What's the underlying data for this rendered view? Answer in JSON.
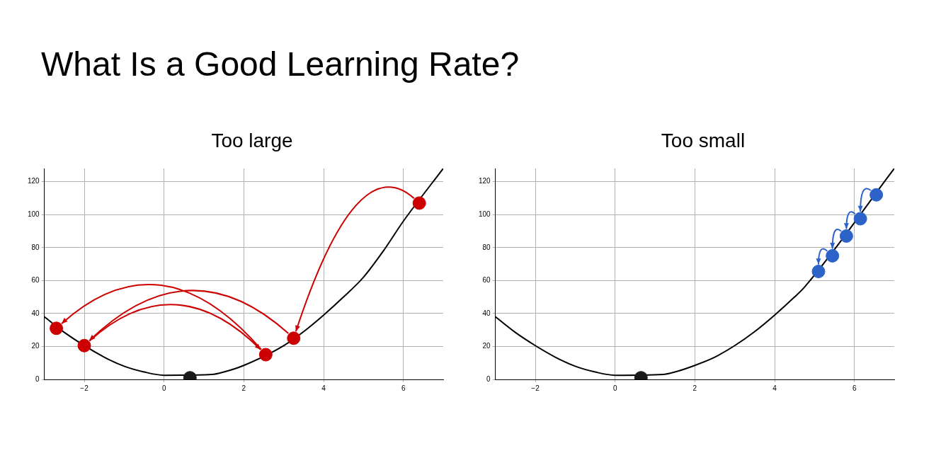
{
  "chart_data": [
    {
      "type": "line",
      "title": "Too large",
      "annotations": [
        "What Is a Good Learning Rate?"
      ],
      "xlim": [
        -3,
        7
      ],
      "ylim": [
        0,
        128
      ],
      "xticks": [
        -2,
        0,
        2,
        4,
        6
      ],
      "yticks": [
        0,
        20,
        40,
        60,
        80,
        100,
        120
      ],
      "grid": true,
      "legend": false,
      "series": [
        {
          "type": "line",
          "color": "#000000",
          "marker": "none",
          "x": [
            -3,
            -2.5,
            -1.5,
            -1,
            -0.5,
            0,
            1.2,
            1.5,
            2,
            3,
            3.5,
            4,
            4.5,
            5,
            5.5,
            6,
            7
          ],
          "values": [
            38,
            28.5,
            13.5,
            8,
            4.5,
            2.5,
            3,
            4.5,
            8.5,
            20.5,
            29,
            39,
            50,
            62,
            78,
            96,
            128
          ]
        },
        {
          "type": "scatter",
          "color": "#cc0000",
          "marker": "circle",
          "x": [
            6.4,
            3.25,
            -2,
            2.55,
            -2.7
          ],
          "values": [
            107,
            25,
            20.5,
            15,
            31
          ]
        },
        {
          "type": "scatter",
          "color": "#1a1a1a",
          "marker": "circle",
          "x": [
            0.65
          ],
          "values": [
            1
          ]
        }
      ]
    },
    {
      "type": "line",
      "title": "Too small",
      "xlim": [
        -3,
        7
      ],
      "ylim": [
        0,
        128
      ],
      "xticks": [
        -2,
        0,
        2,
        4,
        6
      ],
      "yticks": [
        0,
        20,
        40,
        60,
        80,
        100,
        120
      ],
      "grid": true,
      "legend": false,
      "series": [
        {
          "type": "line",
          "color": "#000000",
          "marker": "none",
          "x": [
            -3,
            -2.5,
            -2,
            -1.5,
            -1,
            -0.5,
            0,
            1.2,
            1.5,
            2,
            2.5,
            3,
            3.5,
            4,
            4.5,
            4.75,
            7
          ],
          "values": [
            38,
            28.5,
            20.5,
            13.5,
            8,
            4.5,
            2.5,
            3,
            4.5,
            8.5,
            13.5,
            20.5,
            29,
            39,
            50,
            56,
            128
          ]
        },
        {
          "type": "scatter",
          "color": "#2d63c8",
          "marker": "circle",
          "x": [
            6.55,
            6.15,
            5.8,
            5.45,
            5.1
          ],
          "values": [
            112,
            97.5,
            87,
            75,
            65.5
          ]
        },
        {
          "type": "scatter",
          "color": "#1a1a1a",
          "marker": "circle",
          "x": [
            0.65
          ],
          "values": [
            1
          ]
        }
      ]
    }
  ]
}
